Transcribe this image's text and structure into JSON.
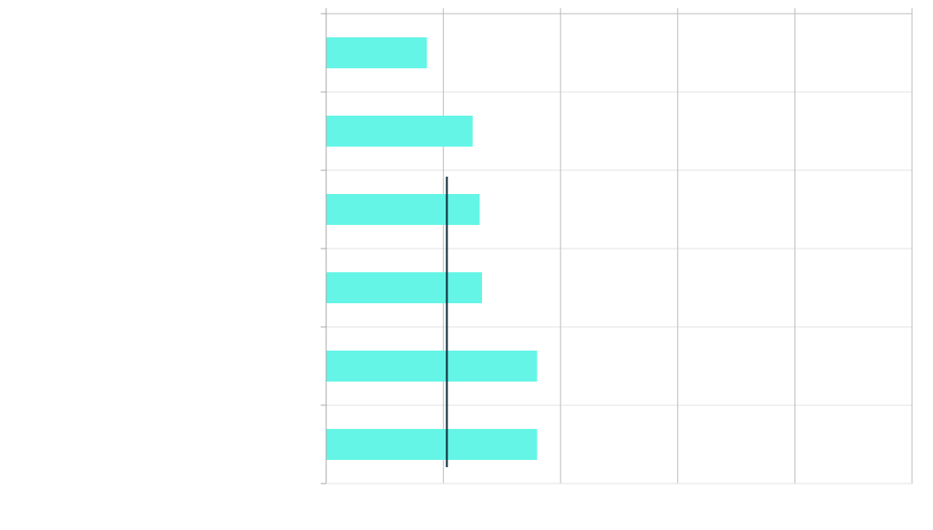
{
  "chart_data": {
    "type": "bar",
    "orientation": "horizontal",
    "title": "",
    "xlabel": "",
    "ylabel": "",
    "categories": [
      "",
      "",
      "",
      "",
      "",
      ""
    ],
    "values": [
      0.86,
      1.25,
      1.31,
      1.33,
      1.8,
      1.8
    ],
    "xlim": [
      0,
      5
    ],
    "x_ticks": [
      0,
      1,
      2,
      3,
      4,
      5
    ],
    "tick_labels_visible": false,
    "reference_line": {
      "value": 1.03,
      "span": "middle-four-categories"
    },
    "grid": true,
    "legend": "none"
  },
  "colors": {
    "bar": "#64f5e6",
    "reference_line": "#0f2a3a",
    "grid_major": "#bdbdbd",
    "grid_minor": "#e3e3e3",
    "axis": "#a8a8a8"
  }
}
